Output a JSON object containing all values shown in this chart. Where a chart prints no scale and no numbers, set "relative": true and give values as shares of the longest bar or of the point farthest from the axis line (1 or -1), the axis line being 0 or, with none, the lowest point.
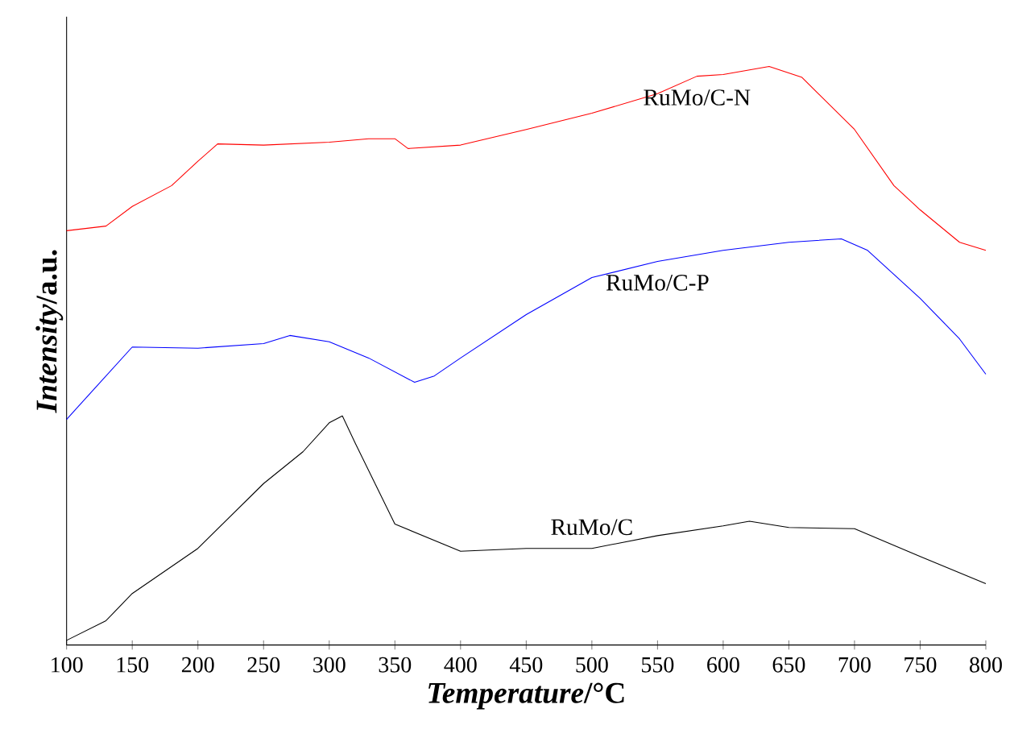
{
  "chart_data": {
    "type": "line",
    "relative": true,
    "xlabel": "*Temperature*/°C",
    "ylabel": "*Intensity*/a.u.",
    "xlim": [
      100,
      800
    ],
    "xticks": [
      100,
      150,
      200,
      250,
      300,
      350,
      400,
      450,
      500,
      550,
      600,
      650,
      700,
      750,
      800
    ],
    "tick_labels": "x",
    "series": [
      {
        "name": "RuMo/C-N",
        "color": "#ff0000",
        "x": [
          100,
          130,
          150,
          180,
          200,
          215,
          250,
          300,
          330,
          350,
          360,
          400,
          450,
          500,
          550,
          580,
          600,
          635,
          660,
          700,
          730,
          750,
          780,
          800
        ],
        "values": [
          0.716,
          0.724,
          0.758,
          0.794,
          0.836,
          0.866,
          0.864,
          0.869,
          0.875,
          0.875,
          0.858,
          0.864,
          0.891,
          0.919,
          0.953,
          0.983,
          0.986,
          1,
          0.981,
          0.891,
          0.794,
          0.752,
          0.696,
          0.682
        ]
      },
      {
        "name": "RuMo/C-P",
        "color": "#0000ff",
        "x": [
          100,
          120,
          150,
          200,
          250,
          270,
          300,
          330,
          365,
          380,
          400,
          450,
          500,
          550,
          600,
          650,
          690,
          710,
          750,
          780,
          800
        ],
        "values": [
          0.39,
          0.44,
          0.515,
          0.513,
          0.521,
          0.535,
          0.524,
          0.496,
          0.454,
          0.465,
          0.496,
          0.571,
          0.635,
          0.663,
          0.682,
          0.696,
          0.702,
          0.682,
          0.599,
          0.529,
          0.468
        ]
      },
      {
        "name": "RuMo/C",
        "color": "#000000",
        "x": [
          100,
          130,
          150,
          200,
          250,
          280,
          300,
          310,
          320,
          350,
          400,
          450,
          500,
          550,
          600,
          620,
          650,
          700,
          750,
          800
        ],
        "values": [
          0.008,
          0.042,
          0.089,
          0.167,
          0.279,
          0.334,
          0.384,
          0.396,
          0.348,
          0.209,
          0.162,
          0.167,
          0.167,
          0.189,
          0.206,
          0.214,
          0.203,
          0.201,
          0.153,
          0.106
        ]
      }
    ]
  }
}
